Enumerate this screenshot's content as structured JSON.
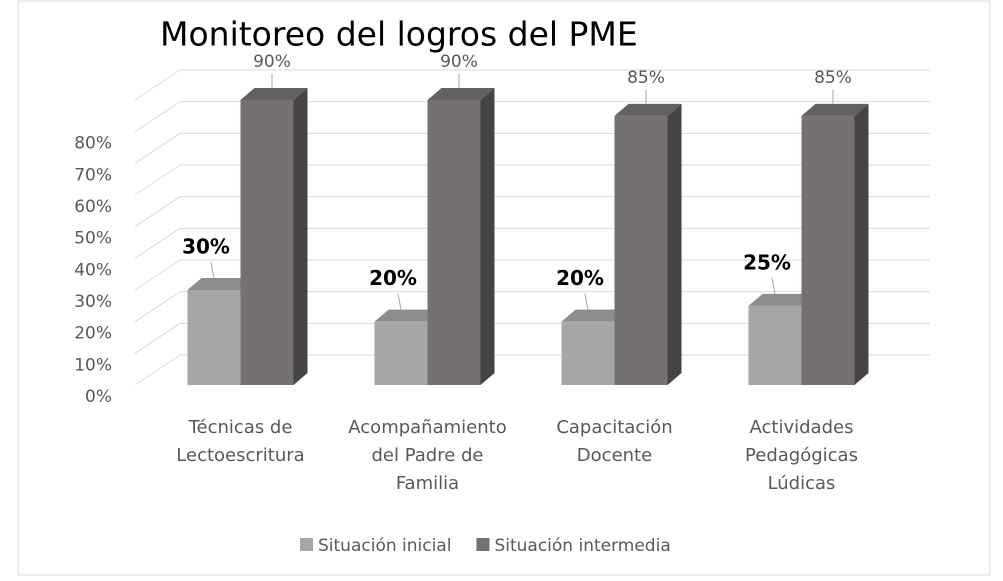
{
  "chart_data": {
    "type": "bar3d",
    "title": "Monitoreo del logros del PME",
    "categories": [
      "Técnicas de Lectoescritura",
      "Acompañamiento del Padre de Familia",
      "Capacitación Docente",
      "Actividades Pedagógicas Lúdicas"
    ],
    "series": [
      {
        "name": "Situación inicial",
        "color": "#a6a6a6",
        "values": [
          30,
          20,
          20,
          25
        ],
        "value_labels": [
          "30%",
          "20%",
          "20%",
          "25%"
        ]
      },
      {
        "name": "Situación intermedia",
        "color": "#767171",
        "values": [
          90,
          90,
          85,
          85
        ],
        "value_labels": [
          "90%",
          "90%",
          "85%",
          "85%"
        ]
      }
    ],
    "ylim": [
      0,
      90
    ],
    "yticks": [
      {
        "value": 0,
        "label": "0%"
      },
      {
        "value": 10,
        "label": "10%"
      },
      {
        "value": 20,
        "label": "20%"
      },
      {
        "value": 30,
        "label": "30%"
      },
      {
        "value": 40,
        "label": "40%"
      },
      {
        "value": 50,
        "label": "50%"
      },
      {
        "value": 60,
        "label": "60%"
      },
      {
        "value": 70,
        "label": "70%"
      },
      {
        "value": 80,
        "label": "80%"
      }
    ],
    "grid": true,
    "legend": "bottom"
  }
}
